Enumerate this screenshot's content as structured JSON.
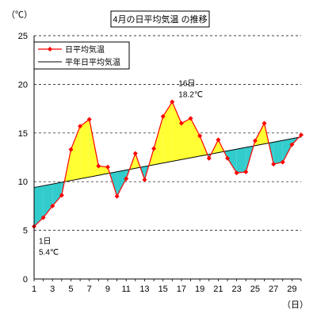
{
  "chart_data": {
    "type": "line",
    "title": "4月の日平均気温 の推移",
    "y_unit_label": "（℃）",
    "x_unit_label": "（日）",
    "ylim": [
      0,
      25
    ],
    "yticks": [
      0,
      5,
      10,
      15,
      20,
      25
    ],
    "xlim": [
      1,
      30
    ],
    "xtick_labels": [
      "1",
      "3",
      "5",
      "7",
      "9",
      "11",
      "13",
      "15",
      "17",
      "19",
      "21",
      "23",
      "25",
      "27",
      "29"
    ],
    "grid": "horizontal dashed",
    "legend_position": "top-left",
    "fill_above_color": "#ffff33",
    "fill_below_color": "#33cccc",
    "series": [
      {
        "name": "日平均気温",
        "color": "#ff0000",
        "marker": "diamond",
        "x": [
          1,
          2,
          3,
          4,
          5,
          6,
          7,
          8,
          9,
          10,
          11,
          12,
          13,
          14,
          15,
          16,
          17,
          18,
          19,
          20,
          21,
          22,
          23,
          24,
          25,
          26,
          27,
          28,
          29,
          30
        ],
        "values": [
          5.4,
          6.3,
          7.5,
          8.6,
          13.3,
          15.7,
          16.4,
          11.6,
          11.5,
          8.5,
          10.3,
          12.9,
          10.2,
          13.4,
          16.7,
          18.2,
          16.0,
          16.5,
          14.7,
          12.4,
          14.3,
          12.4,
          10.9,
          11.0,
          14.2,
          16.0,
          11.8,
          12.0,
          13.8,
          14.8
        ]
      },
      {
        "name": "平年日平均気温",
        "color": "#000000",
        "x": [
          1,
          30
        ],
        "values": [
          9.4,
          14.6
        ]
      }
    ],
    "annotations": [
      {
        "day_label": "1日",
        "value_label": "5.4℃",
        "x": 1,
        "y": 5.4
      },
      {
        "day_label": "16日",
        "value_label": "18.2℃",
        "x": 16,
        "y": 18.2
      }
    ]
  }
}
